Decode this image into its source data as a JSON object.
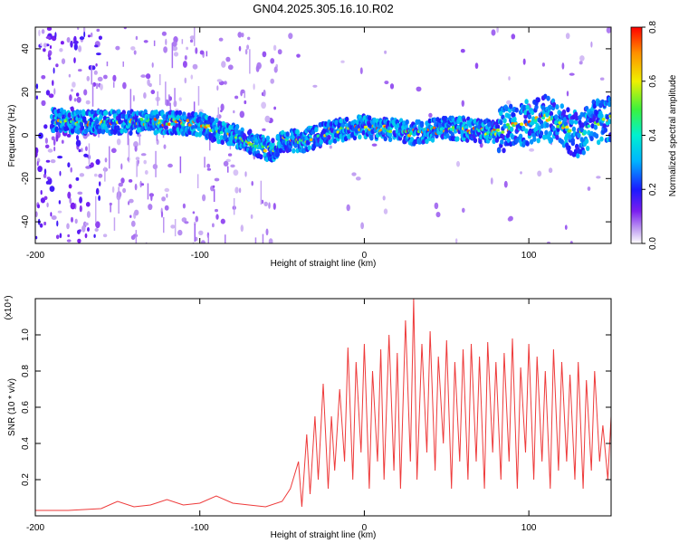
{
  "title": "GN04.2025.305.16.10.R02",
  "chart_data": [
    {
      "type": "heatmap",
      "xlabel": "Height of straight line (km)",
      "ylabel": "Frequency (Hz)",
      "xlim": [
        -200,
        150
      ],
      "ylim": [
        -50,
        50
      ],
      "x_ticks": [
        -200,
        -100,
        0,
        100
      ],
      "y_ticks": [
        -40,
        -20,
        0,
        20,
        40
      ],
      "colorbar": {
        "label": "Normalized spectral amplitude",
        "range": [
          0,
          0.8
        ],
        "ticks": [
          "0.0",
          "0.2",
          "0.4",
          "0.6",
          "0.8"
        ]
      },
      "ridge": {
        "x": [
          -190,
          -170,
          -150,
          -130,
          -115,
          -100,
          -90,
          -80,
          -70,
          -60,
          -55,
          -50,
          -40,
          -30,
          -20,
          -10,
          0,
          10,
          20,
          30,
          40,
          50,
          60,
          70,
          80,
          90,
          100,
          110,
          120,
          130,
          140,
          150
        ],
        "frequency": [
          7,
          6,
          6,
          6,
          6,
          5,
          2,
          0,
          -3,
          -6,
          -7,
          -2,
          -3,
          -1,
          2,
          3,
          4,
          3,
          2,
          1,
          2,
          3,
          3,
          2,
          2,
          4,
          6,
          8,
          4,
          0,
          6,
          8
        ]
      }
    },
    {
      "type": "line",
      "xlabel": "Height of straight line (km)",
      "ylabel": "SNR (10 * v/v)",
      "multiplier_label": "(x10⁴)",
      "xlim": [
        -200,
        150
      ],
      "ylim": [
        0,
        1.2
      ],
      "x_ticks": [
        -200,
        -100,
        0,
        100
      ],
      "y_ticks": [
        0.2,
        0.4,
        0.6,
        0.8,
        1.0
      ],
      "series": [
        {
          "color": "#ee3a3a",
          "x": [
            -200,
            -180,
            -160,
            -150,
            -140,
            -130,
            -120,
            -110,
            -100,
            -90,
            -80,
            -70,
            -60,
            -50,
            -45,
            -40,
            -38,
            -35,
            -33,
            -30,
            -28,
            -25,
            -22,
            -20,
            -18,
            -15,
            -12,
            -10,
            -7,
            -5,
            -2,
            0,
            3,
            5,
            8,
            10,
            12,
            15,
            18,
            20,
            22,
            25,
            28,
            30,
            32,
            35,
            38,
            40,
            43,
            45,
            48,
            50,
            53,
            55,
            58,
            60,
            63,
            65,
            68,
            70,
            73,
            75,
            78,
            80,
            83,
            85,
            88,
            90,
            93,
            95,
            98,
            100,
            103,
            105,
            108,
            110,
            113,
            115,
            118,
            120,
            123,
            125,
            128,
            130,
            133,
            135,
            138,
            140,
            143,
            145,
            148,
            150
          ],
          "values": [
            0.03,
            0.03,
            0.04,
            0.08,
            0.05,
            0.06,
            0.09,
            0.06,
            0.07,
            0.11,
            0.07,
            0.06,
            0.05,
            0.08,
            0.15,
            0.3,
            0.05,
            0.45,
            0.12,
            0.55,
            0.2,
            0.73,
            0.15,
            0.55,
            0.25,
            0.7,
            0.3,
            0.93,
            0.2,
            0.85,
            0.35,
            0.95,
            0.15,
            0.8,
            0.3,
            0.92,
            0.2,
            1.0,
            0.25,
            0.9,
            0.15,
            1.08,
            0.3,
            1.2,
            0.2,
            0.95,
            0.35,
            1.02,
            0.25,
            0.88,
            0.4,
            0.97,
            0.15,
            0.85,
            0.3,
            0.92,
            0.2,
            0.95,
            0.3,
            0.88,
            0.15,
            0.96,
            0.35,
            0.85,
            0.2,
            0.9,
            0.3,
            0.98,
            0.15,
            0.82,
            0.35,
            0.95,
            0.2,
            0.88,
            0.3,
            0.8,
            0.15,
            0.92,
            0.25,
            0.85,
            0.3,
            0.78,
            0.2,
            0.85,
            0.15,
            0.75,
            0.25,
            0.8,
            0.3,
            0.5,
            0.2,
            0.55
          ]
        }
      ]
    }
  ]
}
